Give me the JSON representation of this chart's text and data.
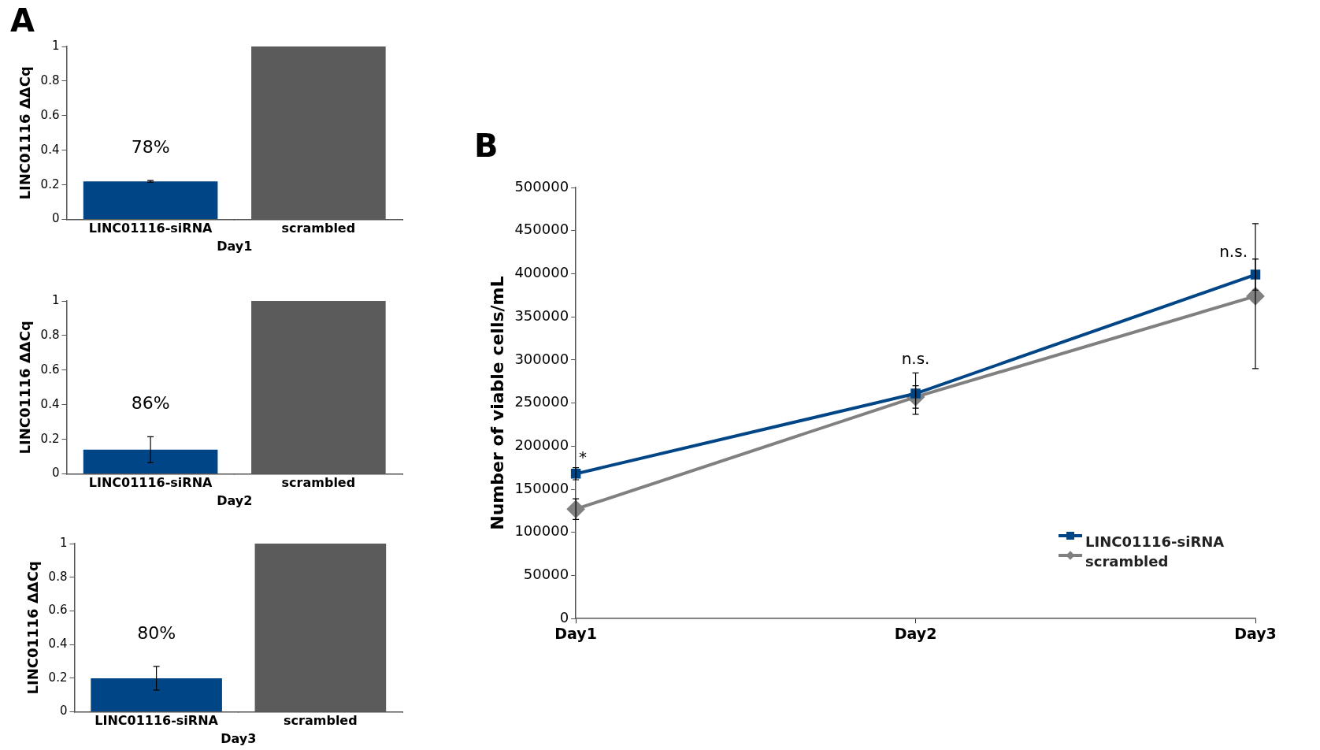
{
  "chart_data": [
    {
      "type": "bar",
      "title": "A",
      "ylabel": "LINC01116 ΔΔCq",
      "xlabel": "Day1",
      "categories": [
        "LINC01116-siRNA",
        "scrambled"
      ],
      "values": [
        0.22,
        1.0
      ],
      "colors": [
        "#004586",
        "#5b5b5b"
      ],
      "errors": [
        0.005,
        null
      ],
      "ylim": [
        0,
        1
      ],
      "yticks": [
        0,
        0.2,
        0.4,
        0.6,
        0.8,
        1
      ],
      "grid": false,
      "legend": false,
      "annotations": [
        {
          "text": "78%",
          "x": "LINC01116-siRNA",
          "y": 0.22
        }
      ]
    },
    {
      "type": "bar",
      "ylabel": "LINC01116 ΔΔCq",
      "xlabel": "Day2",
      "categories": [
        "LINC01116-siRNA",
        "scrambled"
      ],
      "values": [
        0.14,
        1.0
      ],
      "colors": [
        "#004586",
        "#5b5b5b"
      ],
      "errors": [
        0.075,
        null
      ],
      "ylim": [
        0,
        1
      ],
      "yticks": [
        0,
        0.2,
        0.4,
        0.6,
        0.8,
        1
      ],
      "grid": false,
      "legend": false,
      "annotations": [
        {
          "text": "86%",
          "x": "LINC01116-siRNA",
          "y": 0.14
        }
      ]
    },
    {
      "type": "bar",
      "ylabel": "LINC01116 ΔΔCq",
      "xlabel": "Day3",
      "categories": [
        "LINC01116-siRNA",
        "scrambled"
      ],
      "values": [
        0.2,
        1.0
      ],
      "colors": [
        "#004586",
        "#5b5b5b"
      ],
      "errors": [
        0.07,
        null
      ],
      "ylim": [
        0,
        1
      ],
      "yticks": [
        0,
        0.2,
        0.4,
        0.6,
        0.8,
        1
      ],
      "grid": false,
      "legend": false,
      "annotations": [
        {
          "text": "80%",
          "x": "LINC01116-siRNA",
          "y": 0.2
        }
      ]
    },
    {
      "type": "line",
      "title": "B",
      "ylabel": "Number of viable cells/mL",
      "categories": [
        "Day1",
        "Day2",
        "Day3"
      ],
      "ylim": [
        0,
        500000
      ],
      "yticks": [
        0,
        50000,
        100000,
        150000,
        200000,
        250000,
        300000,
        350000,
        400000,
        450000,
        500000
      ],
      "grid": false,
      "legend": "bottom right",
      "series": [
        {
          "name": "LINC01116-siRNA",
          "color": "#004586",
          "marker": "square",
          "values": [
            168000,
            261000,
            399000
          ],
          "errors": [
            7000,
            24000,
            18000
          ]
        },
        {
          "name": "scrambled",
          "color": "#808080",
          "marker": "diamond",
          "values": [
            127000,
            257000,
            374000
          ],
          "errors": [
            12000,
            13000,
            84000
          ]
        }
      ],
      "annotations": [
        {
          "text": "*",
          "x": "Day1",
          "y": 168000
        },
        {
          "text": "n.s.",
          "x": "Day2",
          "y": 261000
        },
        {
          "text": "n.s.",
          "x": "Day3",
          "y": 399000
        }
      ]
    }
  ]
}
